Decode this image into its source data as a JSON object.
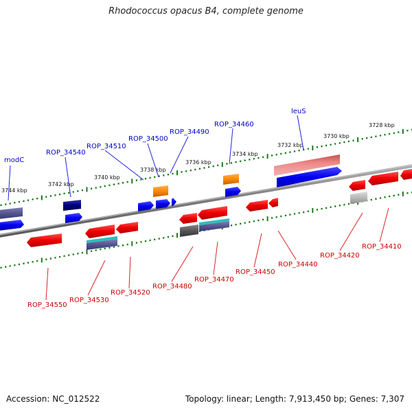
{
  "title": "Rhodococcus opacus B4, complete genome",
  "footer": {
    "accession": "Accession: NC_012522",
    "summary": "Topology: linear; Length: 7,913,450 bp; Genes: 7,307"
  },
  "ticks": [
    {
      "label": "3728 kbp"
    },
    {
      "label": "3730 kbp"
    },
    {
      "label": "3732 kbp"
    },
    {
      "label": "3734 kbp"
    },
    {
      "label": "3736 kbp"
    },
    {
      "label": "3738 kbp"
    },
    {
      "label": "3740 kbp"
    },
    {
      "label": "3742 kbp"
    },
    {
      "label": "3744 kbp"
    }
  ],
  "top_gene_labels": [
    "modC",
    "ROP_34540",
    "ROP_34510",
    "ROP_34500",
    "ROP_34490",
    "ROP_34460",
    "leuS"
  ],
  "bottom_gene_labels": [
    "ROP_34550",
    "ROP_34530",
    "ROP_34520",
    "ROP_34480",
    "ROP_34470",
    "ROP_34450",
    "ROP_34440",
    "ROP_34420",
    "ROP_34410"
  ],
  "colors": {
    "label_top": "#0000cc",
    "label_bottom": "#cc0000",
    "tick": "#1a7a1a",
    "backbone": "#888888",
    "gene_blue": "#0000ee",
    "gene_red": "#ee0000",
    "gene_orange": "#ff8800",
    "gene_navy": "#000080",
    "gene_purple": "#55558f",
    "gene_pink": "#ee8080",
    "gene_gray": "#666666",
    "gene_lightgray": "#b8b8b8",
    "gene_cyan": "#22bbbb"
  }
}
